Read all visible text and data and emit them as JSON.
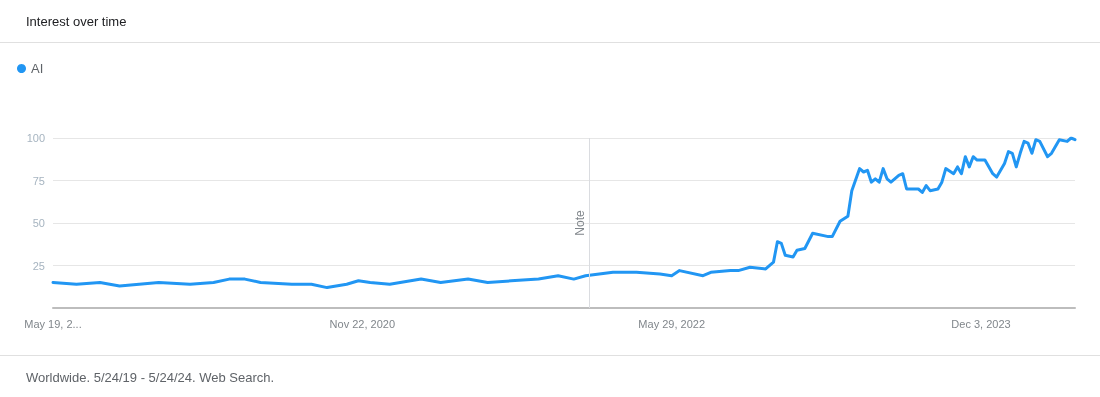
{
  "chart_data": {
    "type": "line",
    "title": "Interest over time",
    "annotations": [
      "Worldwide. 5/24/19 - 5/24/24. Web Search."
    ],
    "x": [
      "2019-05-19",
      "2019-06-30",
      "2019-08-11",
      "2019-09-15",
      "2019-10-20",
      "2019-11-24",
      "2020-01-19",
      "2020-03-01",
      "2020-03-29",
      "2020-04-26",
      "2020-05-24",
      "2020-07-19",
      "2020-08-23",
      "2020-09-20",
      "2020-10-25",
      "2020-11-15",
      "2020-12-06",
      "2021-01-10",
      "2021-03-07",
      "2021-04-11",
      "2021-05-30",
      "2021-07-04",
      "2021-08-15",
      "2021-10-03",
      "2021-11-07",
      "2021-12-05",
      "2021-12-26",
      "2022-02-13",
      "2022-03-27",
      "2022-05-08",
      "2022-05-29",
      "2022-06-12",
      "2022-07-24",
      "2022-08-07",
      "2022-09-11",
      "2022-09-25",
      "2022-10-16",
      "2022-11-13",
      "2022-11-27",
      "2022-12-04",
      "2022-12-11",
      "2022-12-18",
      "2023-01-01",
      "2023-01-08",
      "2023-01-22",
      "2023-02-05",
      "2023-03-05",
      "2023-03-12",
      "2023-03-26",
      "2023-04-09",
      "2023-04-16",
      "2023-04-30",
      "2023-05-07",
      "2023-05-14",
      "2023-05-21",
      "2023-05-28",
      "2023-06-04",
      "2023-06-11",
      "2023-06-18",
      "2023-06-25",
      "2023-07-09",
      "2023-07-16",
      "2023-07-23",
      "2023-08-13",
      "2023-08-20",
      "2023-08-27",
      "2023-09-03",
      "2023-09-17",
      "2023-09-24",
      "2023-10-01",
      "2023-10-15",
      "2023-10-22",
      "2023-10-29",
      "2023-11-05",
      "2023-11-12",
      "2023-11-19",
      "2023-11-26",
      "2023-12-10",
      "2023-12-24",
      "2023-12-31",
      "2024-01-14",
      "2024-01-21",
      "2024-01-28",
      "2024-02-04",
      "2024-02-11",
      "2024-02-18",
      "2024-02-25",
      "2024-03-03",
      "2024-03-10",
      "2024-03-17",
      "2024-03-31",
      "2024-04-07",
      "2024-04-21",
      "2024-05-05",
      "2024-05-12",
      "2024-05-19"
    ],
    "series": [
      {
        "name": "AI",
        "color": "#2196f3",
        "values": [
          15,
          14,
          15,
          13,
          14,
          15,
          14,
          15,
          17,
          17,
          15,
          14,
          14,
          12,
          14,
          16,
          15,
          14,
          17,
          15,
          17,
          15,
          16,
          17,
          19,
          17,
          19,
          21,
          21,
          20,
          19,
          22,
          19,
          21,
          22,
          22,
          24,
          23,
          27,
          39,
          38,
          31,
          30,
          34,
          35,
          44,
          42,
          42,
          51,
          54,
          69,
          82,
          80,
          81,
          74,
          76,
          74,
          82,
          76,
          74,
          78,
          79,
          70,
          70,
          68,
          72,
          69,
          70,
          74,
          82,
          79,
          83,
          79,
          89,
          83,
          89,
          87,
          87,
          79,
          77,
          85,
          92,
          91,
          83,
          91,
          98,
          97,
          91,
          99,
          98,
          89,
          91,
          99,
          98,
          100,
          99
        ]
      }
    ],
    "xlim": [
      "2019-05-19",
      "2024-05-19"
    ],
    "xticks": [
      {
        "value": "2019-05-19",
        "label": "May 19, 2..."
      },
      {
        "value": "2020-11-22",
        "label": "Nov 22, 2020"
      },
      {
        "value": "2022-05-29",
        "label": "May 29, 2022"
      },
      {
        "value": "2023-12-03",
        "label": "Dec 3, 2023"
      }
    ],
    "ylim": [
      0,
      100
    ],
    "yticks": [
      25,
      50,
      75,
      100
    ],
    "ref_lines": [
      {
        "axis": "x",
        "value": "2022-01-01",
        "label": "Note",
        "color": "#dadce0"
      }
    ],
    "grid": "y",
    "legend": "top left",
    "marker": "none",
    "line_style": "solid"
  }
}
